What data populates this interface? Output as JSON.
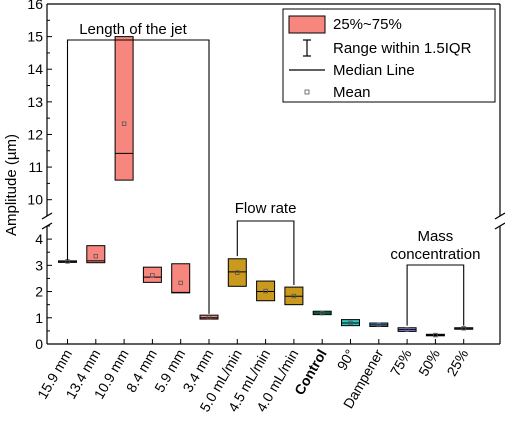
{
  "chart_data": {
    "type": "box",
    "title": "",
    "ylabel": "Amplitude (µm)",
    "xlabel": "",
    "y_axis_break": {
      "lower_range": [
        0,
        4.5
      ],
      "upper_range": [
        9.5,
        16
      ]
    },
    "yticks_lower": [
      "0",
      "1",
      "2",
      "3",
      "4"
    ],
    "yticks_upper": [
      "10",
      "11",
      "12",
      "13",
      "14",
      "15",
      "16"
    ],
    "categories": [
      "15.9 mm",
      "13.4 mm",
      "10.9 mm",
      "8.4 mm",
      "5.9 mm",
      "3.4 mm",
      "5.0 mL/min",
      "4.5 mL/min",
      "4.0 mL/min",
      "Control",
      "90°",
      "Dampener",
      "75%",
      "50%",
      "25%"
    ],
    "bold_categories": [
      "Control"
    ],
    "series": [
      {
        "category": "15.9 mm",
        "q1": 3.13,
        "median": 3.15,
        "q3": 3.17,
        "mean": 3.15,
        "color": "#f7877e"
      },
      {
        "category": "13.4 mm",
        "q1": 3.1,
        "median": 3.17,
        "q3": 3.75,
        "mean": 3.35,
        "color": "#f7877e"
      },
      {
        "category": "10.9 mm",
        "q1": 10.6,
        "median": 11.42,
        "q3": 15.0,
        "mean": 12.33,
        "color": "#f7877e"
      },
      {
        "category": "8.4 mm",
        "q1": 2.35,
        "median": 2.55,
        "q3": 2.93,
        "mean": 2.62,
        "color": "#f7877e"
      },
      {
        "category": "5.9 mm",
        "q1": 1.95,
        "median": 1.97,
        "q3": 3.06,
        "mean": 2.33,
        "color": "#f7877e"
      },
      {
        "category": "3.4 mm",
        "q1": 0.95,
        "median": 1.0,
        "q3": 1.1,
        "mean": 1.01,
        "color": "#f7877e"
      },
      {
        "category": "5.0 mL/min",
        "q1": 2.2,
        "median": 2.75,
        "q3": 3.25,
        "mean": 2.72,
        "color": "#c99a1e"
      },
      {
        "category": "4.5 mL/min",
        "q1": 1.65,
        "median": 2.0,
        "q3": 2.4,
        "mean": 2.02,
        "color": "#c99a1e"
      },
      {
        "category": "4.0 mL/min",
        "q1": 1.5,
        "median": 1.82,
        "q3": 2.17,
        "mean": 1.83,
        "color": "#c99a1e"
      },
      {
        "category": "Control",
        "q1": 1.12,
        "median": 1.18,
        "q3": 1.25,
        "mean": 1.18,
        "color": "#1fae7a"
      },
      {
        "category": "90°",
        "q1": 0.7,
        "median": 0.8,
        "q3": 0.93,
        "mean": 0.8,
        "color": "#2fc8c0"
      },
      {
        "category": "Dampener",
        "q1": 0.67,
        "median": 0.73,
        "q3": 0.8,
        "mean": 0.73,
        "color": "#5aa7e6"
      },
      {
        "category": "75%",
        "q1": 0.48,
        "median": 0.55,
        "q3": 0.62,
        "mean": 0.55,
        "color": "#8f8ff0"
      },
      {
        "category": "50%",
        "q1": 0.32,
        "median": 0.34,
        "q3": 0.37,
        "mean": 0.34,
        "color": "#c58cf0"
      },
      {
        "category": "25%",
        "q1": 0.57,
        "median": 0.6,
        "q3": 0.62,
        "mean": 0.6,
        "color": "#f08ad8"
      }
    ],
    "group_annotations": [
      {
        "label": "Length of the jet",
        "from": "15.9 mm",
        "to": "3.4 mm"
      },
      {
        "label": "Flow rate",
        "from": "5.0 mL/min",
        "to": "4.0 mL/min"
      },
      {
        "label": "Mass concentration",
        "lines": [
          "Mass",
          "concentration"
        ],
        "from": "75%",
        "to": "25%"
      }
    ],
    "legend": {
      "position": "top-right",
      "entries": [
        {
          "kind": "box",
          "label": "25%~75%",
          "color": "#f7877e"
        },
        {
          "kind": "range",
          "label": "Range within 1.5IQR"
        },
        {
          "kind": "median",
          "label": "Median Line"
        },
        {
          "kind": "mean",
          "label": "Mean"
        }
      ]
    },
    "grid": false
  }
}
